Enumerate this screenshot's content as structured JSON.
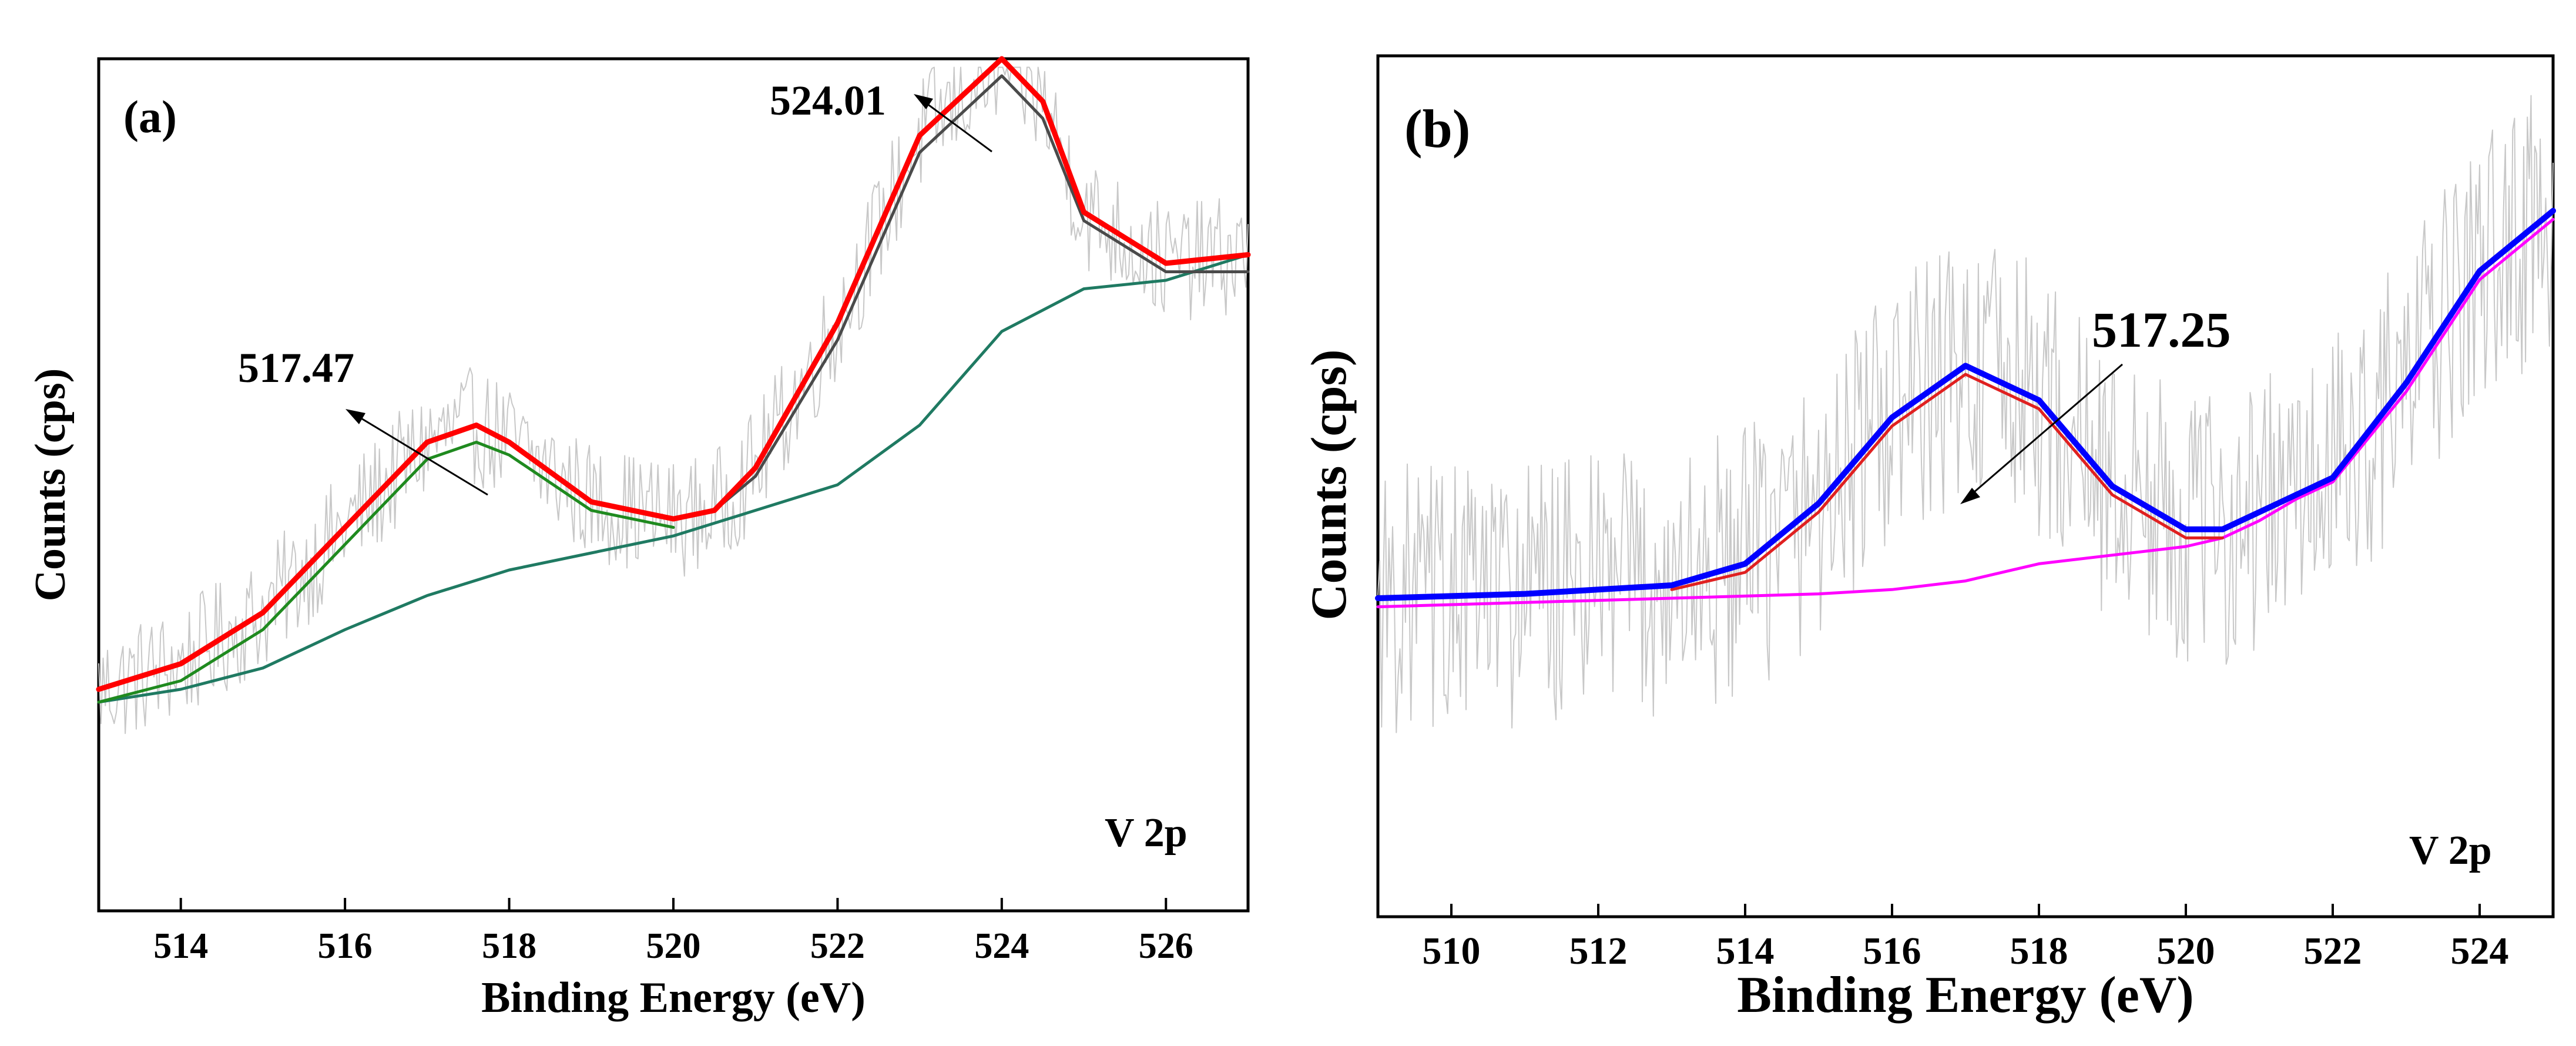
{
  "chart_data": [
    {
      "panel_label": "(a)",
      "type": "line",
      "xlabel": "Binding Energy (eV)",
      "ylabel": "Counts (cps)",
      "xlim": [
        513,
        527
      ],
      "x_ticks": [
        514,
        516,
        518,
        520,
        522,
        524,
        526
      ],
      "y_tick_labels_shown": false,
      "corner_label": "V 2p",
      "annotations": [
        {
          "text": "517.47",
          "x": 517.47
        },
        {
          "text": "524.01",
          "x": 524.01
        }
      ],
      "series": [
        {
          "role": "raw",
          "color": "#c8c8c8",
          "kind": "noisy"
        },
        {
          "role": "envelope",
          "color": "#ff0000",
          "x": [
            513,
            514,
            515,
            516,
            517,
            517.6,
            518,
            519,
            520,
            520.5,
            521,
            522,
            523,
            524,
            524.5,
            525,
            526,
            527
          ],
          "y": [
            0.26,
            0.29,
            0.35,
            0.45,
            0.55,
            0.57,
            0.55,
            0.48,
            0.46,
            0.47,
            0.52,
            0.69,
            0.91,
            1.0,
            0.95,
            0.82,
            0.76,
            0.77
          ]
        },
        {
          "role": "peak-524",
          "color": "#4a4a4a",
          "x": [
            520.5,
            521,
            522,
            523,
            524,
            524.5,
            525,
            526,
            527
          ],
          "y": [
            0.47,
            0.51,
            0.67,
            0.89,
            0.98,
            0.93,
            0.81,
            0.75,
            0.75
          ]
        },
        {
          "role": "peak-517",
          "color": "#1f8a1f",
          "x": [
            513,
            514,
            515,
            516,
            517,
            517.6,
            518,
            519,
            520
          ],
          "y": [
            0.245,
            0.27,
            0.33,
            0.43,
            0.53,
            0.55,
            0.535,
            0.47,
            0.45
          ]
        },
        {
          "role": "background",
          "color": "#1f7a62",
          "x": [
            513,
            514,
            515,
            516,
            517,
            518,
            519,
            520,
            521,
            522,
            523,
            524,
            525,
            526,
            527
          ],
          "y": [
            0.245,
            0.26,
            0.285,
            0.33,
            0.37,
            0.4,
            0.42,
            0.44,
            0.47,
            0.5,
            0.57,
            0.68,
            0.73,
            0.74,
            0.77
          ]
        }
      ]
    },
    {
      "panel_label": "(b)",
      "type": "line",
      "xlabel": "Binding Energy (eV)",
      "ylabel": "Counts (cps)",
      "xlim": [
        509,
        525
      ],
      "x_ticks": [
        510,
        512,
        514,
        516,
        518,
        520,
        522,
        524
      ],
      "y_tick_labels_shown": false,
      "corner_label": "V 2p",
      "annotations": [
        {
          "text": "517.25",
          "x": 517.0
        }
      ],
      "series": [
        {
          "role": "raw",
          "color": "#c8c8c8",
          "kind": "noisy"
        },
        {
          "role": "envelope",
          "color": "#0000ff",
          "x": [
            509,
            511,
            513,
            514,
            515,
            516,
            517,
            518,
            519,
            520,
            520.5,
            521,
            521.5,
            522,
            523,
            524,
            525
          ],
          "y": [
            0.37,
            0.375,
            0.385,
            0.41,
            0.48,
            0.58,
            0.64,
            0.6,
            0.5,
            0.45,
            0.45,
            0.47,
            0.49,
            0.51,
            0.62,
            0.75,
            0.82
          ]
        },
        {
          "role": "peak-517",
          "color": "#e02020",
          "x": [
            513,
            514,
            515,
            516,
            517,
            518,
            519,
            520,
            520.5
          ],
          "y": [
            0.38,
            0.4,
            0.47,
            0.57,
            0.63,
            0.59,
            0.49,
            0.44,
            0.44
          ]
        },
        {
          "role": "background",
          "color": "#ff00ff",
          "x": [
            509,
            511,
            513,
            515,
            516,
            517,
            518,
            519,
            520,
            520.5,
            521,
            521.5,
            522,
            523,
            524,
            525
          ],
          "y": [
            0.36,
            0.365,
            0.37,
            0.375,
            0.38,
            0.39,
            0.41,
            0.42,
            0.43,
            0.44,
            0.46,
            0.485,
            0.505,
            0.61,
            0.74,
            0.81
          ]
        }
      ]
    }
  ]
}
